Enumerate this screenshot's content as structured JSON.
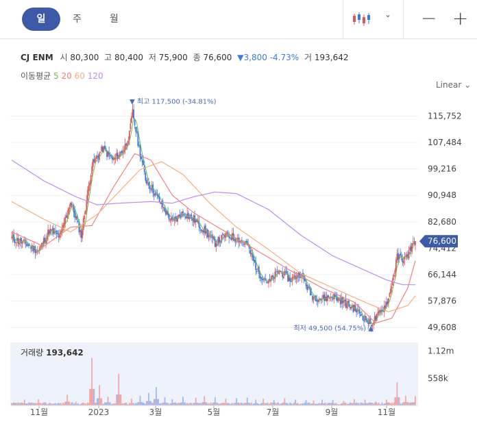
{
  "periods": [
    "일",
    "주",
    "월"
  ],
  "stock": {
    "name": "CJ ENM",
    "open_label": "시",
    "open": "80,300",
    "high_label": "고",
    "high": "80,400",
    "low_label": "저",
    "low": "75,900",
    "close_label": "종",
    "close": "76,600",
    "change": "▼3,800",
    "change_pct": "-4.73%",
    "volume_label": "거",
    "volume": "193,642"
  },
  "ma_legend": {
    "label": "이동평균",
    "periods": [
      "5",
      "20",
      "60",
      "120"
    ]
  },
  "scale_label": "Linear",
  "colors": {
    "accent": "#3d5aa9",
    "up": "#e0575b",
    "down": "#3b7be0",
    "ma5": "#6cbf4f",
    "ma20": "#f08080",
    "ma60": "#f3b07a",
    "ma120": "#b98cf0"
  },
  "chart_data": {
    "type": "candlestick",
    "y_ticks": [
      115752,
      107484,
      99216,
      90948,
      82680,
      74412,
      66144,
      57876,
      49608
    ],
    "y_tick_labels": [
      "115,752",
      "107,484",
      "99,216",
      "90,948",
      "82,680",
      "74,412",
      "66,144",
      "57,876",
      "49,608"
    ],
    "ylim": [
      46000,
      121000
    ],
    "x_labels": [
      "11월",
      "2023",
      "3월",
      "5월",
      "7월",
      "9월",
      "11월"
    ],
    "last_price": 76600,
    "last_price_label": "76,600",
    "high_marker": {
      "text": "▼ 최고 117,500 (-34.81%)",
      "value": 117500
    },
    "low_marker": {
      "text": "최저 49,500 (54.75%) ▲",
      "value": 49500
    },
    "close_keypoints": [
      [
        0,
        77500
      ],
      [
        12,
        76000
      ],
      [
        25,
        73500
      ],
      [
        35,
        80000
      ],
      [
        45,
        78000
      ],
      [
        55,
        89000
      ],
      [
        65,
        78500
      ],
      [
        75,
        100500
      ],
      [
        85,
        105500
      ],
      [
        95,
        102000
      ],
      [
        105,
        105500
      ],
      [
        110,
        110000
      ],
      [
        113,
        117000
      ],
      [
        118,
        107500
      ],
      [
        125,
        96000
      ],
      [
        133,
        92000
      ],
      [
        140,
        88000
      ],
      [
        150,
        82500
      ],
      [
        160,
        85500
      ],
      [
        170,
        83500
      ],
      [
        180,
        80000
      ],
      [
        190,
        76000
      ],
      [
        200,
        78500
      ],
      [
        210,
        77500
      ],
      [
        220,
        75500
      ],
      [
        230,
        67000
      ],
      [
        240,
        63500
      ],
      [
        250,
        67500
      ],
      [
        260,
        64500
      ],
      [
        270,
        66500
      ],
      [
        280,
        59500
      ],
      [
        290,
        58500
      ],
      [
        300,
        59500
      ],
      [
        310,
        57500
      ],
      [
        320,
        55500
      ],
      [
        330,
        52500
      ],
      [
        335,
        50500
      ],
      [
        345,
        54500
      ],
      [
        352,
        58500
      ],
      [
        360,
        71500
      ],
      [
        368,
        71000
      ],
      [
        377,
        77500
      ]
    ],
    "ma_series": [
      {
        "period": "20",
        "keypoints": [
          [
            0,
            79500
          ],
          [
            30,
            75000
          ],
          [
            55,
            81000
          ],
          [
            75,
            81500
          ],
          [
            95,
            93500
          ],
          [
            115,
            104000
          ],
          [
            130,
            102000
          ],
          [
            150,
            91000
          ],
          [
            170,
            85500
          ],
          [
            200,
            79500
          ],
          [
            230,
            73500
          ],
          [
            260,
            67500
          ],
          [
            290,
            62000
          ],
          [
            320,
            57500
          ],
          [
            340,
            51000
          ],
          [
            355,
            52500
          ],
          [
            370,
            62000
          ],
          [
            377,
            70500
          ]
        ]
      },
      {
        "period": "60",
        "keypoints": [
          [
            0,
            89000
          ],
          [
            30,
            83500
          ],
          [
            55,
            79500
          ],
          [
            80,
            85000
          ],
          [
            100,
            92000
          ],
          [
            120,
            99000
          ],
          [
            140,
            101500
          ],
          [
            160,
            97500
          ],
          [
            185,
            88500
          ],
          [
            210,
            81000
          ],
          [
            240,
            74000
          ],
          [
            270,
            66500
          ],
          [
            300,
            62000
          ],
          [
            330,
            57500
          ],
          [
            352,
            54500
          ],
          [
            370,
            56500
          ],
          [
            377,
            59500
          ]
        ]
      },
      {
        "period": "120",
        "keypoints": [
          [
            0,
            102000
          ],
          [
            30,
            95500
          ],
          [
            60,
            90500
          ],
          [
            80,
            88000
          ],
          [
            100,
            88500
          ],
          [
            130,
            89000
          ],
          [
            150,
            88500
          ],
          [
            170,
            90500
          ],
          [
            190,
            92000
          ],
          [
            210,
            91500
          ],
          [
            240,
            86500
          ],
          [
            270,
            78500
          ],
          [
            300,
            72000
          ],
          [
            330,
            67500
          ],
          [
            350,
            64500
          ],
          [
            365,
            63000
          ],
          [
            377,
            63000
          ]
        ]
      }
    ],
    "volume": {
      "label": "거래량",
      "value": "193,642",
      "y_tick_labels": [
        "1.12m",
        "558k"
      ],
      "ylim": [
        0,
        1300000
      ],
      "spikes": [
        [
          12,
          120000
        ],
        [
          25,
          130000
        ],
        [
          52,
          220000
        ],
        [
          60,
          80000
        ],
        [
          75,
          980000
        ],
        [
          82,
          420000
        ],
        [
          90,
          180000
        ],
        [
          100,
          650000
        ],
        [
          112,
          140000
        ],
        [
          120,
          200000
        ],
        [
          128,
          260000
        ],
        [
          135,
          380000
        ],
        [
          143,
          170000
        ],
        [
          150,
          130000
        ],
        [
          160,
          180000
        ],
        [
          172,
          160000
        ],
        [
          180,
          190000
        ],
        [
          190,
          170000
        ],
        [
          200,
          140000
        ],
        [
          210,
          150000
        ],
        [
          220,
          160000
        ],
        [
          228,
          120000
        ],
        [
          235,
          140000
        ],
        [
          245,
          110000
        ],
        [
          255,
          150000
        ],
        [
          265,
          120000
        ],
        [
          275,
          110000
        ],
        [
          282,
          100000
        ],
        [
          290,
          120000
        ],
        [
          300,
          110000
        ],
        [
          310,
          90000
        ],
        [
          320,
          130000
        ],
        [
          330,
          120000
        ],
        [
          340,
          80000
        ],
        [
          350,
          120000
        ],
        [
          360,
          480000
        ],
        [
          368,
          200000
        ],
        [
          377,
          190000
        ]
      ]
    }
  }
}
